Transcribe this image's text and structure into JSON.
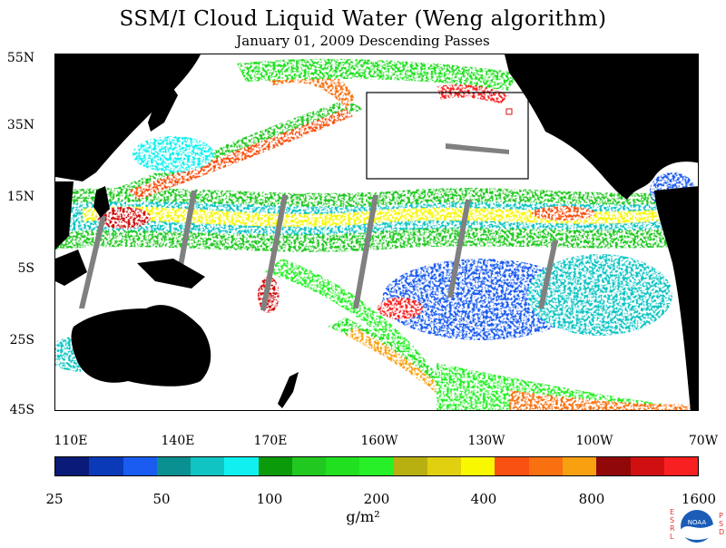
{
  "title": "SSM/I Cloud Liquid Water (Weng algorithm)",
  "subtitle": "January 01, 2009  Descending Passes",
  "lat_labels": [
    "55N",
    "35N",
    "15N",
    "5S",
    "25S",
    "45S"
  ],
  "lon_labels": [
    "110E",
    "140E",
    "170E",
    "160W",
    "130W",
    "100W",
    "70W"
  ],
  "colorbar": {
    "colors": [
      "#0a1a78",
      "#0a3ab8",
      "#1a5cf0",
      "#0a9090",
      "#10c4c4",
      "#10f0f0",
      "#0a9a0a",
      "#20c820",
      "#20e020",
      "#28f028",
      "#b8b010",
      "#e0d010",
      "#f8f800",
      "#f85010",
      "#f87010",
      "#f8a010",
      "#900808",
      "#d01010",
      "#f82020"
    ],
    "labels": [
      "25",
      "50",
      "100",
      "200",
      "400",
      "800",
      "1600"
    ]
  },
  "units": "g/m²",
  "logo": {
    "text": "NOAA",
    "left_letters": "ESRL",
    "right_letters": "PSD"
  },
  "map": {
    "land_color": "#000000",
    "swath_gap_color": "#808080",
    "ocean_clear_color": "#ffffff",
    "annotation_box_color": "#000000"
  }
}
